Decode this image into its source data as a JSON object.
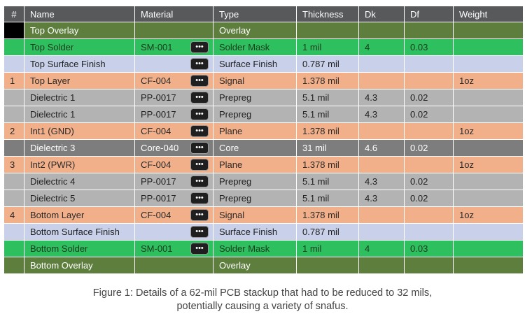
{
  "headers": [
    "#",
    "Name",
    "Material",
    "Type",
    "Thickness",
    "Dk",
    "Df",
    "Weight"
  ],
  "more_button_label": "•••",
  "rows": [
    {
      "num": "",
      "name": "Top Overlay",
      "material": "",
      "type": "Overlay",
      "thickness": "",
      "dk": "",
      "df": "",
      "weight": "",
      "style": "overlay",
      "has_button": false,
      "black_num": true
    },
    {
      "num": "",
      "name": "Top Solder",
      "material": "SM-001",
      "type": "Solder Mask",
      "thickness": "1 mil",
      "dk": "4",
      "df": "0.03",
      "weight": "",
      "style": "soldermask",
      "has_button": true,
      "black_num": false
    },
    {
      "num": "",
      "name": "Top Surface Finish",
      "material": "",
      "type": "Surface Finish",
      "thickness": "0.787 mil",
      "dk": "",
      "df": "",
      "weight": "",
      "style": "finish",
      "has_button": true,
      "black_num": false
    },
    {
      "num": "1",
      "name": "Top Layer",
      "material": "CF-004",
      "type": "Signal",
      "thickness": "1.378 mil",
      "dk": "",
      "df": "",
      "weight": "1oz",
      "style": "copper",
      "has_button": true,
      "black_num": false
    },
    {
      "num": "",
      "name": "Dielectric 1",
      "material": "PP-0017",
      "type": "Prepreg",
      "thickness": "5.1 mil",
      "dk": "4.3",
      "df": "0.02",
      "weight": "",
      "style": "prepreg",
      "has_button": true,
      "black_num": false
    },
    {
      "num": "",
      "name": "Dielectric 1",
      "material": "PP-0017",
      "type": "Prepreg",
      "thickness": "5.1 mil",
      "dk": "4.3",
      "df": "0.02",
      "weight": "",
      "style": "prepreg",
      "has_button": true,
      "black_num": false
    },
    {
      "num": "2",
      "name": "Int1 (GND)",
      "material": "CF-004",
      "type": "Plane",
      "thickness": "1.378 mil",
      "dk": "",
      "df": "",
      "weight": "1oz",
      "style": "copper",
      "has_button": true,
      "black_num": false
    },
    {
      "num": "",
      "name": "Dielectric 3",
      "material": "Core-040",
      "type": "Core",
      "thickness": "31 mil",
      "dk": "4.6",
      "df": "0.02",
      "weight": "",
      "style": "core",
      "has_button": true,
      "black_num": false
    },
    {
      "num": "3",
      "name": "Int2 (PWR)",
      "material": "CF-004",
      "type": "Plane",
      "thickness": "1.378 mil",
      "dk": "",
      "df": "",
      "weight": "1oz",
      "style": "copper",
      "has_button": true,
      "black_num": false
    },
    {
      "num": "",
      "name": "Dielectric 4",
      "material": "PP-0017",
      "type": "Prepreg",
      "thickness": "5.1 mil",
      "dk": "4.3",
      "df": "0.02",
      "weight": "",
      "style": "prepreg",
      "has_button": true,
      "black_num": false
    },
    {
      "num": "",
      "name": "Dielectric 5",
      "material": "PP-0017",
      "type": "Prepreg",
      "thickness": "5.1 mil",
      "dk": "4.3",
      "df": "0.02",
      "weight": "",
      "style": "prepreg",
      "has_button": true,
      "black_num": false
    },
    {
      "num": "4",
      "name": "Bottom Layer",
      "material": "CF-004",
      "type": "Signal",
      "thickness": "1.378 mil",
      "dk": "",
      "df": "",
      "weight": "1oz",
      "style": "copper",
      "has_button": true,
      "black_num": false
    },
    {
      "num": "",
      "name": "Bottom Surface Finish",
      "material": "",
      "type": "Surface Finish",
      "thickness": "0.787 mil",
      "dk": "",
      "df": "",
      "weight": "",
      "style": "finish",
      "has_button": true,
      "black_num": false
    },
    {
      "num": "",
      "name": "Bottom Solder",
      "material": "SM-001",
      "type": "Solder Mask",
      "thickness": "1 mil",
      "dk": "4",
      "df": "0.03",
      "weight": "",
      "style": "soldermask",
      "has_button": true,
      "black_num": false
    },
    {
      "num": "",
      "name": "Bottom Overlay",
      "material": "",
      "type": "Overlay",
      "thickness": "",
      "dk": "",
      "df": "",
      "weight": "",
      "style": "overlay",
      "has_button": false,
      "black_num": false
    }
  ],
  "caption": {
    "line1": "Figure 1: Details of a 62-mil PCB stackup that had to be reduced to 32 mils,",
    "line2": "potentially causing a variety of snafus."
  },
  "colors": {
    "header": "#58595b",
    "overlay": "#5d7e3c",
    "solder_mask": "#2ebf5e",
    "surface_finish": "#c9d1ea",
    "copper": "#f2b08a",
    "prepreg": "#b3b3b3",
    "core": "#7d7d7d"
  }
}
